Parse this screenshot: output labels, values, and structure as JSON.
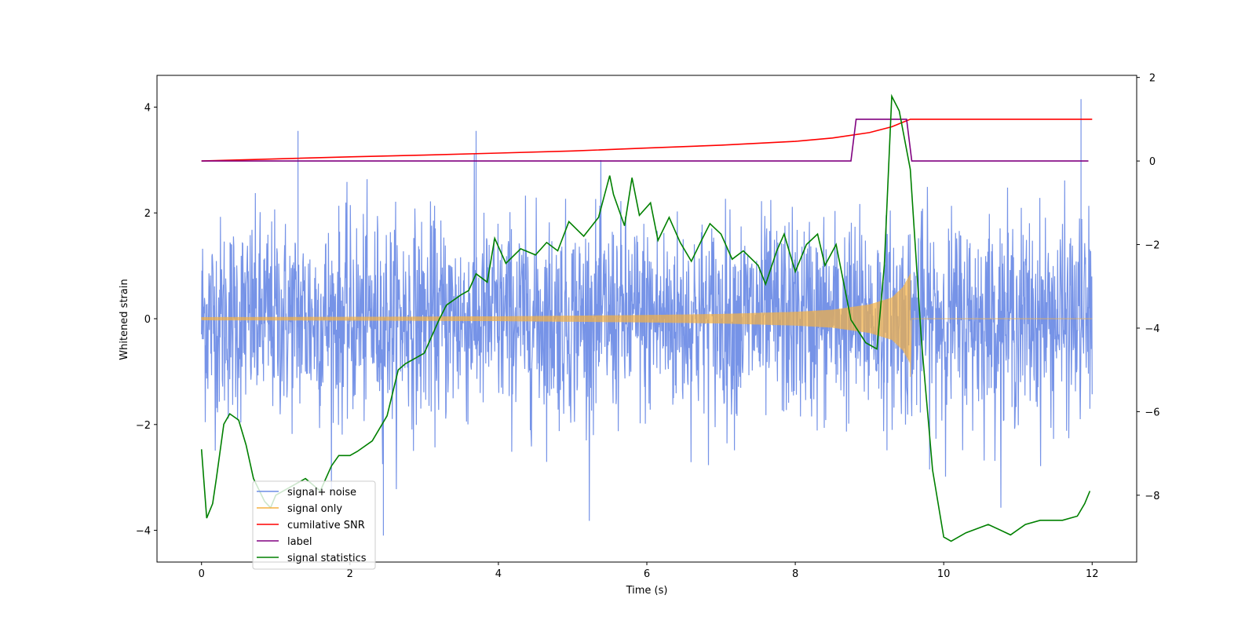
{
  "chart_data": {
    "type": "line",
    "xlabel": "Time (s)",
    "ylabel": "Whitened strain",
    "xlim": [
      -0.6,
      12.6
    ],
    "ylim_left": [
      -4.6,
      4.6
    ],
    "ylim_right": [
      -9.6,
      2.05
    ],
    "x_ticks": [
      0,
      2,
      4,
      6,
      8,
      10,
      12
    ],
    "y_ticks_left": [
      -4,
      -2,
      0,
      2,
      4
    ],
    "y_ticks_right": [
      -8,
      -6,
      -4,
      -2,
      0,
      2
    ],
    "legend_position": "lower-left",
    "grid": false,
    "series": [
      {
        "name": "signal+ noise",
        "axis": "left",
        "color": "#6f8de6",
        "x_range": [
          0,
          12
        ],
        "approx_std": 0.95,
        "approx_range": [
          -4.1,
          4.2
        ],
        "note_peaks": [
          {
            "x": 2.45,
            "y": -4.1
          },
          {
            "x": 11.85,
            "y": 4.15
          },
          {
            "x": 1.3,
            "y": 3.55
          },
          {
            "x": 3.7,
            "y": 3.55
          }
        ]
      },
      {
        "name": "signal only",
        "axis": "left",
        "color": "#f5b041",
        "x_range": [
          0,
          9.55
        ],
        "amplitude_envelope": [
          [
            0,
            0.03
          ],
          [
            2,
            0.035
          ],
          [
            4,
            0.045
          ],
          [
            6,
            0.07
          ],
          [
            7,
            0.09
          ],
          [
            8,
            0.13
          ],
          [
            8.5,
            0.17
          ],
          [
            9,
            0.27
          ],
          [
            9.3,
            0.4
          ],
          [
            9.45,
            0.6
          ],
          [
            9.55,
            0.85
          ]
        ]
      },
      {
        "name": "cumilative SNR",
        "axis": "right",
        "color": "#ff0000",
        "points": [
          [
            0,
            0
          ],
          [
            1,
            0.05
          ],
          [
            2,
            0.1
          ],
          [
            3,
            0.14
          ],
          [
            4,
            0.19
          ],
          [
            5,
            0.24
          ],
          [
            6,
            0.31
          ],
          [
            7,
            0.38
          ],
          [
            8,
            0.47
          ],
          [
            8.5,
            0.55
          ],
          [
            9,
            0.68
          ],
          [
            9.3,
            0.82
          ],
          [
            9.55,
            1.0
          ],
          [
            12,
            1.0
          ]
        ]
      },
      {
        "name": "label",
        "axis": "right",
        "color": "#800080",
        "points": [
          [
            0,
            0
          ],
          [
            8.75,
            0
          ],
          [
            8.82,
            1
          ],
          [
            9.5,
            1
          ],
          [
            9.57,
            0
          ],
          [
            11.95,
            0
          ]
        ]
      },
      {
        "name": "signal statistics",
        "axis": "right",
        "color": "#008000",
        "points": [
          [
            0,
            -6.9
          ],
          [
            0.07,
            -8.55
          ],
          [
            0.15,
            -8.2
          ],
          [
            0.2,
            -7.6
          ],
          [
            0.3,
            -6.3
          ],
          [
            0.38,
            -6.05
          ],
          [
            0.5,
            -6.2
          ],
          [
            0.6,
            -6.8
          ],
          [
            0.7,
            -7.6
          ],
          [
            0.85,
            -8.15
          ],
          [
            0.93,
            -8.3
          ],
          [
            1.0,
            -8.0
          ],
          [
            1.2,
            -7.8
          ],
          [
            1.4,
            -7.6
          ],
          [
            1.6,
            -7.9
          ],
          [
            1.75,
            -7.3
          ],
          [
            1.85,
            -7.05
          ],
          [
            2.0,
            -7.05
          ],
          [
            2.1,
            -6.95
          ],
          [
            2.3,
            -6.7
          ],
          [
            2.5,
            -6.1
          ],
          [
            2.65,
            -5.0
          ],
          [
            2.75,
            -4.85
          ],
          [
            2.85,
            -4.75
          ],
          [
            3.0,
            -4.6
          ],
          [
            3.2,
            -3.8
          ],
          [
            3.3,
            -3.45
          ],
          [
            3.5,
            -3.2
          ],
          [
            3.6,
            -3.1
          ],
          [
            3.7,
            -2.7
          ],
          [
            3.85,
            -2.9
          ],
          [
            3.95,
            -1.85
          ],
          [
            4.1,
            -2.45
          ],
          [
            4.3,
            -2.1
          ],
          [
            4.5,
            -2.25
          ],
          [
            4.65,
            -1.95
          ],
          [
            4.8,
            -2.15
          ],
          [
            4.95,
            -1.45
          ],
          [
            5.15,
            -1.8
          ],
          [
            5.35,
            -1.35
          ],
          [
            5.5,
            -0.35
          ],
          [
            5.55,
            -0.8
          ],
          [
            5.7,
            -1.55
          ],
          [
            5.8,
            -0.4
          ],
          [
            5.9,
            -1.3
          ],
          [
            6.05,
            -1.0
          ],
          [
            6.15,
            -1.9
          ],
          [
            6.3,
            -1.35
          ],
          [
            6.45,
            -1.95
          ],
          [
            6.6,
            -2.4
          ],
          [
            6.75,
            -1.85
          ],
          [
            6.85,
            -1.5
          ],
          [
            7.0,
            -1.75
          ],
          [
            7.15,
            -2.35
          ],
          [
            7.3,
            -2.15
          ],
          [
            7.5,
            -2.5
          ],
          [
            7.6,
            -2.95
          ],
          [
            7.75,
            -2.15
          ],
          [
            7.85,
            -1.75
          ],
          [
            8.0,
            -2.65
          ],
          [
            8.15,
            -2.0
          ],
          [
            8.3,
            -1.75
          ],
          [
            8.4,
            -2.5
          ],
          [
            8.55,
            -2.0
          ],
          [
            8.75,
            -3.8
          ],
          [
            8.95,
            -4.35
          ],
          [
            9.1,
            -4.5
          ],
          [
            9.2,
            -2.5
          ],
          [
            9.3,
            1.55
          ],
          [
            9.4,
            1.2
          ],
          [
            9.55,
            -0.2
          ],
          [
            9.7,
            -4.3
          ],
          [
            9.85,
            -7.4
          ],
          [
            10.0,
            -9.0
          ],
          [
            10.1,
            -9.1
          ],
          [
            10.3,
            -8.9
          ],
          [
            10.6,
            -8.7
          ],
          [
            10.9,
            -8.95
          ],
          [
            11.1,
            -8.7
          ],
          [
            11.3,
            -8.6
          ],
          [
            11.6,
            -8.6
          ],
          [
            11.8,
            -8.5
          ],
          [
            11.9,
            -8.2
          ],
          [
            11.97,
            -7.9
          ]
        ]
      }
    ]
  }
}
